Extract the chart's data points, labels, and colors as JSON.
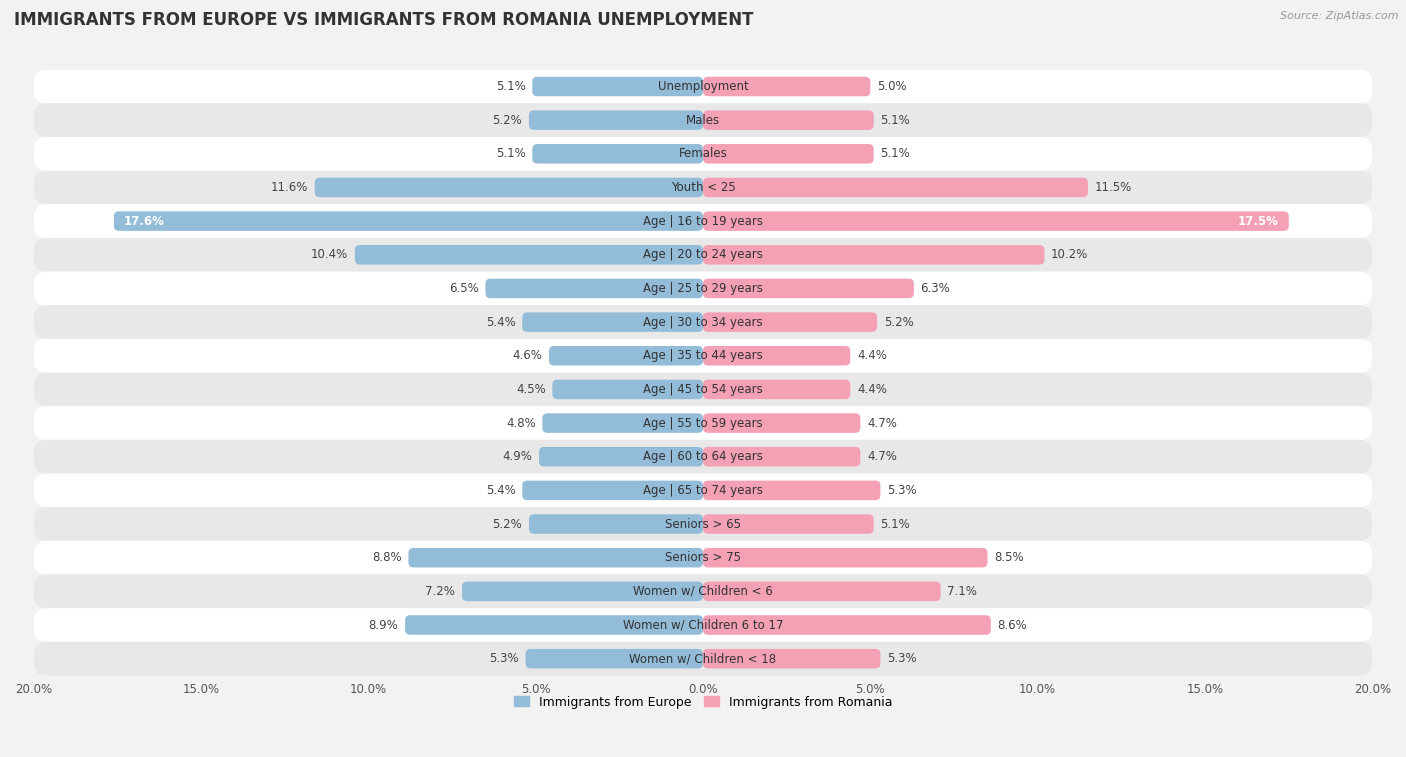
{
  "title": "IMMIGRANTS FROM EUROPE VS IMMIGRANTS FROM ROMANIA UNEMPLOYMENT",
  "source": "Source: ZipAtlas.com",
  "categories": [
    "Unemployment",
    "Males",
    "Females",
    "Youth < 25",
    "Age | 16 to 19 years",
    "Age | 20 to 24 years",
    "Age | 25 to 29 years",
    "Age | 30 to 34 years",
    "Age | 35 to 44 years",
    "Age | 45 to 54 years",
    "Age | 55 to 59 years",
    "Age | 60 to 64 years",
    "Age | 65 to 74 years",
    "Seniors > 65",
    "Seniors > 75",
    "Women w/ Children < 6",
    "Women w/ Children 6 to 17",
    "Women w/ Children < 18"
  ],
  "europe_values": [
    5.1,
    5.2,
    5.1,
    11.6,
    17.6,
    10.4,
    6.5,
    5.4,
    4.6,
    4.5,
    4.8,
    4.9,
    5.4,
    5.2,
    8.8,
    7.2,
    8.9,
    5.3
  ],
  "romania_values": [
    5.0,
    5.1,
    5.1,
    11.5,
    17.5,
    10.2,
    6.3,
    5.2,
    4.4,
    4.4,
    4.7,
    4.7,
    5.3,
    5.1,
    8.5,
    7.1,
    8.6,
    5.3
  ],
  "europe_color": "#92bcd8",
  "romania_color": "#f4a0b5",
  "europe_label": "Immigrants from Europe",
  "romania_label": "Immigrants from Romania",
  "max_val": 20.0,
  "background_color": "#f2f2f2",
  "row_color_light": "#ffffff",
  "row_color_dark": "#e8e8e8",
  "title_fontsize": 12,
  "label_fontsize": 8.5,
  "value_fontsize": 8.5,
  "tick_fontsize": 8.5
}
